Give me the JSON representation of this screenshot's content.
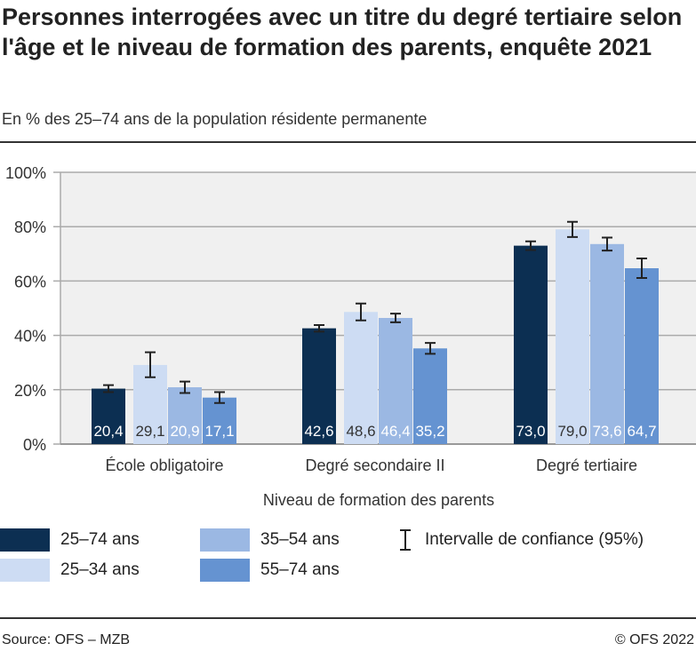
{
  "title": "Personnes interrogées avec un titre du degré tertiaire selon l'âge et le niveau de formation des parents, enquête 2021",
  "subtitle": "En % des 25–74 ans de la population résidente permanente",
  "source": "Source: OFS – MZB",
  "copyright": "© OFS 2022",
  "chart_data": {
    "type": "bar",
    "xlabel": "Niveau de formation des parents",
    "categories": [
      "École obligatoire",
      "Degré secondaire II",
      "Degré tertiaire"
    ],
    "ylim": [
      0,
      100
    ],
    "yticks": [
      "0%",
      "20%",
      "40%",
      "60%",
      "80%",
      "100%"
    ],
    "grid": true,
    "legend_position": "bottom",
    "series": [
      {
        "name": "25–74 ans",
        "color": "#0c2f52",
        "values": [
          20.4,
          42.6,
          73.0
        ],
        "labels": [
          "20,4",
          "42,6",
          "73,0"
        ],
        "ci": [
          [
            19.1,
            21.7
          ],
          [
            41.4,
            43.8
          ],
          [
            71.4,
            74.6
          ]
        ]
      },
      {
        "name": "25–34 ans",
        "color": "#cddcf3",
        "values": [
          29.1,
          48.6,
          79.0
        ],
        "labels": [
          "29,1",
          "48,6",
          "79,0"
        ],
        "ci": [
          [
            24.6,
            33.8
          ],
          [
            45.5,
            51.7
          ],
          [
            76.2,
            81.8
          ]
        ]
      },
      {
        "name": "35–54 ans",
        "color": "#9bb8e3",
        "values": [
          20.9,
          46.4,
          73.6
        ],
        "labels": [
          "20,9",
          "46,4",
          "73,6"
        ],
        "ci": [
          [
            18.8,
            23.0
          ],
          [
            44.8,
            48.0
          ],
          [
            71.2,
            76.0
          ]
        ]
      },
      {
        "name": "55–74 ans",
        "color": "#6593d1",
        "values": [
          17.1,
          35.2,
          64.7
        ],
        "labels": [
          "17,1",
          "35,2",
          "64,7"
        ],
        "ci": [
          [
            15.1,
            19.1
          ],
          [
            33.2,
            37.2
          ],
          [
            61.1,
            68.3
          ]
        ]
      }
    ],
    "ci_legend": "Intervalle de confiance (95%)"
  }
}
